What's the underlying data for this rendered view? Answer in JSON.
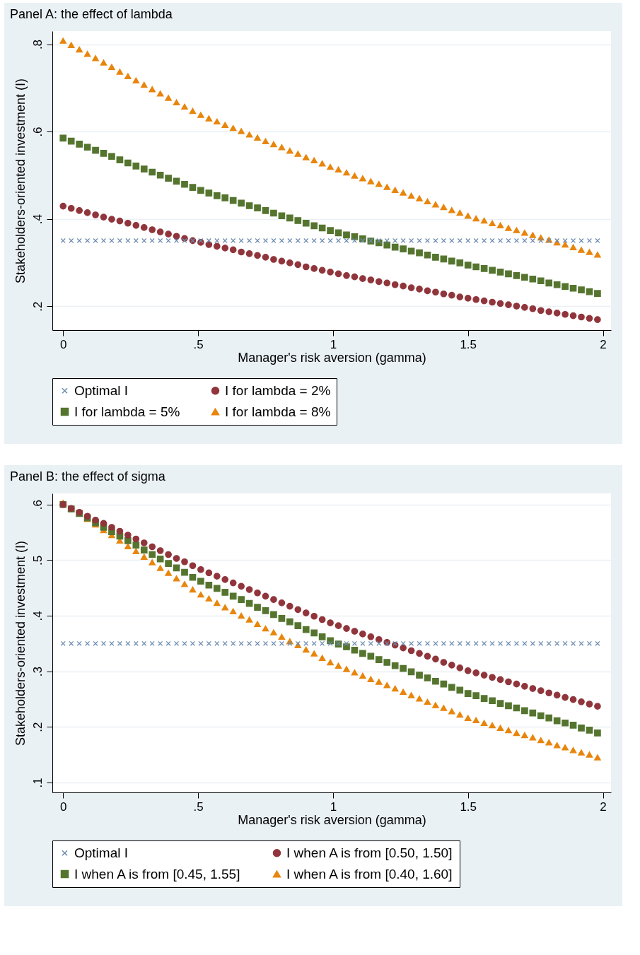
{
  "chart_data": [
    {
      "type": "scatter",
      "title": "Panel A: the effect of lambda",
      "xlabel": "Manager's risk aversion (gamma)",
      "ylabel": "Stakeholders-oriented investment (I)",
      "xlim": [
        -0.04,
        2.03
      ],
      "ylim": [
        0.145,
        0.83
      ],
      "xticks": [
        0,
        {
          "value": 0.5,
          "label": ".5"
        },
        1,
        1.5,
        2
      ],
      "yticks": [
        {
          "value": 0.2,
          "label": ".2"
        },
        {
          "value": 0.4,
          "label": ".4"
        },
        {
          "value": 0.6,
          "label": ".6"
        },
        {
          "value": 0.8,
          "label": ".8"
        }
      ],
      "grid": "y",
      "legend": "bottom",
      "x": [
        0,
        0.03,
        0.06,
        0.09,
        0.12,
        0.15,
        0.18,
        0.21,
        0.24,
        0.27,
        0.3,
        0.33,
        0.36,
        0.39,
        0.42,
        0.45,
        0.48,
        0.51,
        0.54,
        0.57,
        0.6,
        0.63,
        0.66,
        0.69,
        0.72,
        0.75,
        0.78,
        0.81,
        0.84,
        0.87,
        0.9,
        0.93,
        0.96,
        0.99,
        1.02,
        1.05,
        1.08,
        1.11,
        1.14,
        1.17,
        1.2,
        1.23,
        1.26,
        1.29,
        1.32,
        1.35,
        1.38,
        1.41,
        1.44,
        1.47,
        1.5,
        1.53,
        1.56,
        1.59,
        1.62,
        1.65,
        1.68,
        1.71,
        1.74,
        1.77,
        1.8,
        1.83,
        1.86,
        1.89,
        1.92,
        1.95,
        1.98
      ],
      "series": [
        {
          "name": "Optimal I",
          "color": "#6b8bb0",
          "marker": "cross",
          "values": [
            0.35,
            0.35,
            0.35,
            0.35,
            0.35,
            0.35,
            0.35,
            0.35,
            0.35,
            0.35,
            0.35,
            0.35,
            0.35,
            0.35,
            0.35,
            0.35,
            0.35,
            0.35,
            0.35,
            0.35,
            0.35,
            0.35,
            0.35,
            0.35,
            0.35,
            0.35,
            0.35,
            0.35,
            0.35,
            0.35,
            0.35,
            0.35,
            0.35,
            0.35,
            0.35,
            0.35,
            0.35,
            0.35,
            0.35,
            0.35,
            0.35,
            0.35,
            0.35,
            0.35,
            0.35,
            0.35,
            0.35,
            0.35,
            0.35,
            0.35,
            0.35,
            0.35,
            0.35,
            0.35,
            0.35,
            0.35,
            0.35,
            0.35,
            0.35,
            0.35,
            0.35,
            0.35,
            0.35,
            0.35,
            0.35,
            0.35,
            0.35
          ]
        },
        {
          "name": "I for lambda = 2%",
          "color": "#90353b",
          "marker": "circle",
          "values": [
            0.429,
            0.424,
            0.419,
            0.414,
            0.409,
            0.404,
            0.399,
            0.395,
            0.39,
            0.385,
            0.38,
            0.375,
            0.37,
            0.365,
            0.36,
            0.355,
            0.35,
            0.346,
            0.341,
            0.337,
            0.333,
            0.329,
            0.324,
            0.32,
            0.316,
            0.312,
            0.307,
            0.303,
            0.299,
            0.295,
            0.29,
            0.286,
            0.282,
            0.278,
            0.274,
            0.27,
            0.267,
            0.263,
            0.26,
            0.256,
            0.253,
            0.249,
            0.246,
            0.242,
            0.239,
            0.235,
            0.232,
            0.228,
            0.225,
            0.221,
            0.218,
            0.215,
            0.212,
            0.209,
            0.206,
            0.203,
            0.2,
            0.197,
            0.194,
            0.19,
            0.187,
            0.184,
            0.181,
            0.178,
            0.175,
            0.172,
            0.169
          ]
        },
        {
          "name": "I for lambda = 5%",
          "color": "#55752f",
          "marker": "square",
          "values": [
            0.585,
            0.578,
            0.571,
            0.564,
            0.557,
            0.55,
            0.543,
            0.535,
            0.528,
            0.521,
            0.514,
            0.507,
            0.5,
            0.493,
            0.486,
            0.479,
            0.472,
            0.465,
            0.459,
            0.453,
            0.448,
            0.442,
            0.436,
            0.43,
            0.425,
            0.419,
            0.413,
            0.407,
            0.402,
            0.396,
            0.39,
            0.384,
            0.379,
            0.373,
            0.368,
            0.363,
            0.359,
            0.354,
            0.349,
            0.345,
            0.34,
            0.335,
            0.331,
            0.326,
            0.322,
            0.317,
            0.312,
            0.308,
            0.303,
            0.299,
            0.294,
            0.29,
            0.286,
            0.282,
            0.278,
            0.274,
            0.27,
            0.266,
            0.262,
            0.258,
            0.253,
            0.249,
            0.245,
            0.241,
            0.237,
            0.233,
            0.229
          ]
        },
        {
          "name": "I for lambda = 8%",
          "color": "#e8850c",
          "marker": "triangle",
          "values": [
            0.808,
            0.798,
            0.788,
            0.778,
            0.768,
            0.758,
            0.748,
            0.737,
            0.727,
            0.717,
            0.707,
            0.697,
            0.687,
            0.677,
            0.667,
            0.657,
            0.647,
            0.638,
            0.63,
            0.623,
            0.615,
            0.608,
            0.601,
            0.593,
            0.586,
            0.578,
            0.571,
            0.564,
            0.556,
            0.549,
            0.541,
            0.534,
            0.527,
            0.519,
            0.513,
            0.506,
            0.499,
            0.493,
            0.486,
            0.48,
            0.473,
            0.466,
            0.46,
            0.453,
            0.447,
            0.44,
            0.433,
            0.427,
            0.42,
            0.414,
            0.407,
            0.401,
            0.396,
            0.39,
            0.385,
            0.379,
            0.374,
            0.368,
            0.363,
            0.357,
            0.352,
            0.346,
            0.341,
            0.335,
            0.329,
            0.324,
            0.318
          ]
        }
      ]
    },
    {
      "type": "scatter",
      "title": "Panel B: the effect of sigma",
      "xlabel": "Manager's risk aversion (gamma)",
      "ylabel": "Stakeholders-oriented investment (I)",
      "xlim": [
        -0.04,
        2.03
      ],
      "ylim": [
        0.082,
        0.62
      ],
      "xticks": [
        0,
        {
          "value": 0.5,
          "label": ".5"
        },
        1,
        1.5,
        2
      ],
      "yticks": [
        {
          "value": 0.1,
          "label": ".1"
        },
        {
          "value": 0.2,
          "label": ".2"
        },
        {
          "value": 0.3,
          "label": ".3"
        },
        {
          "value": 0.4,
          "label": ".4"
        },
        {
          "value": 0.5,
          "label": ".5"
        },
        {
          "value": 0.6,
          "label": ".6"
        }
      ],
      "grid": "y",
      "legend": "bottom",
      "x": [
        0,
        0.03,
        0.06,
        0.09,
        0.12,
        0.15,
        0.18,
        0.21,
        0.24,
        0.27,
        0.3,
        0.33,
        0.36,
        0.39,
        0.42,
        0.45,
        0.48,
        0.51,
        0.54,
        0.57,
        0.6,
        0.63,
        0.66,
        0.69,
        0.72,
        0.75,
        0.78,
        0.81,
        0.84,
        0.87,
        0.9,
        0.93,
        0.96,
        0.99,
        1.02,
        1.05,
        1.08,
        1.11,
        1.14,
        1.17,
        1.2,
        1.23,
        1.26,
        1.29,
        1.32,
        1.35,
        1.38,
        1.41,
        1.44,
        1.47,
        1.5,
        1.53,
        1.56,
        1.59,
        1.62,
        1.65,
        1.68,
        1.71,
        1.74,
        1.77,
        1.8,
        1.83,
        1.86,
        1.89,
        1.92,
        1.95,
        1.98
      ],
      "series": [
        {
          "name": "Optimal I",
          "color": "#6b8bb0",
          "marker": "cross",
          "values": [
            0.35,
            0.35,
            0.35,
            0.35,
            0.35,
            0.35,
            0.35,
            0.35,
            0.35,
            0.35,
            0.35,
            0.35,
            0.35,
            0.35,
            0.35,
            0.35,
            0.35,
            0.35,
            0.35,
            0.35,
            0.35,
            0.35,
            0.35,
            0.35,
            0.35,
            0.35,
            0.35,
            0.35,
            0.35,
            0.35,
            0.35,
            0.35,
            0.35,
            0.35,
            0.35,
            0.35,
            0.35,
            0.35,
            0.35,
            0.35,
            0.35,
            0.35,
            0.35,
            0.35,
            0.35,
            0.35,
            0.35,
            0.35,
            0.35,
            0.35,
            0.35,
            0.35,
            0.35,
            0.35,
            0.35,
            0.35,
            0.35,
            0.35,
            0.35,
            0.35,
            0.35,
            0.35,
            0.35,
            0.35,
            0.35,
            0.35,
            0.35
          ]
        },
        {
          "name": "I when A is from [0.50, 1.50]",
          "color": "#90353b",
          "marker": "circle",
          "values": [
            0.6,
            0.593,
            0.586,
            0.579,
            0.572,
            0.566,
            0.559,
            0.552,
            0.545,
            0.538,
            0.531,
            0.524,
            0.517,
            0.51,
            0.503,
            0.497,
            0.49,
            0.483,
            0.477,
            0.471,
            0.465,
            0.459,
            0.453,
            0.447,
            0.441,
            0.435,
            0.429,
            0.423,
            0.417,
            0.411,
            0.405,
            0.399,
            0.393,
            0.387,
            0.382,
            0.377,
            0.372,
            0.367,
            0.362,
            0.357,
            0.352,
            0.347,
            0.342,
            0.337,
            0.332,
            0.327,
            0.322,
            0.316,
            0.311,
            0.306,
            0.301,
            0.297,
            0.293,
            0.289,
            0.285,
            0.281,
            0.277,
            0.273,
            0.269,
            0.265,
            0.261,
            0.257,
            0.253,
            0.249,
            0.245,
            0.241,
            0.237
          ]
        },
        {
          "name": "I when A is from [0.45, 1.55]",
          "color": "#55752f",
          "marker": "square",
          "values": [
            0.6,
            0.592,
            0.584,
            0.576,
            0.567,
            0.559,
            0.551,
            0.543,
            0.535,
            0.527,
            0.518,
            0.51,
            0.502,
            0.494,
            0.486,
            0.478,
            0.469,
            0.462,
            0.455,
            0.449,
            0.442,
            0.435,
            0.429,
            0.422,
            0.415,
            0.409,
            0.402,
            0.395,
            0.389,
            0.382,
            0.375,
            0.369,
            0.362,
            0.355,
            0.349,
            0.344,
            0.338,
            0.332,
            0.327,
            0.321,
            0.316,
            0.31,
            0.305,
            0.299,
            0.293,
            0.288,
            0.282,
            0.277,
            0.271,
            0.266,
            0.26,
            0.256,
            0.251,
            0.247,
            0.242,
            0.238,
            0.234,
            0.229,
            0.225,
            0.22,
            0.216,
            0.211,
            0.207,
            0.203,
            0.198,
            0.194,
            0.189
          ]
        },
        {
          "name": "I when A is from [0.40, 1.60]",
          "color": "#e8850c",
          "marker": "triangle",
          "values": [
            0.603,
            0.593,
            0.584,
            0.574,
            0.564,
            0.554,
            0.545,
            0.535,
            0.525,
            0.516,
            0.506,
            0.496,
            0.486,
            0.477,
            0.467,
            0.457,
            0.447,
            0.438,
            0.431,
            0.423,
            0.415,
            0.408,
            0.4,
            0.393,
            0.385,
            0.377,
            0.37,
            0.362,
            0.354,
            0.347,
            0.339,
            0.332,
            0.324,
            0.316,
            0.31,
            0.304,
            0.298,
            0.292,
            0.286,
            0.281,
            0.275,
            0.269,
            0.263,
            0.257,
            0.251,
            0.245,
            0.239,
            0.234,
            0.228,
            0.222,
            0.216,
            0.212,
            0.207,
            0.203,
            0.198,
            0.194,
            0.189,
            0.185,
            0.181,
            0.176,
            0.172,
            0.167,
            0.163,
            0.158,
            0.154,
            0.15,
            0.145
          ]
        }
      ]
    }
  ]
}
